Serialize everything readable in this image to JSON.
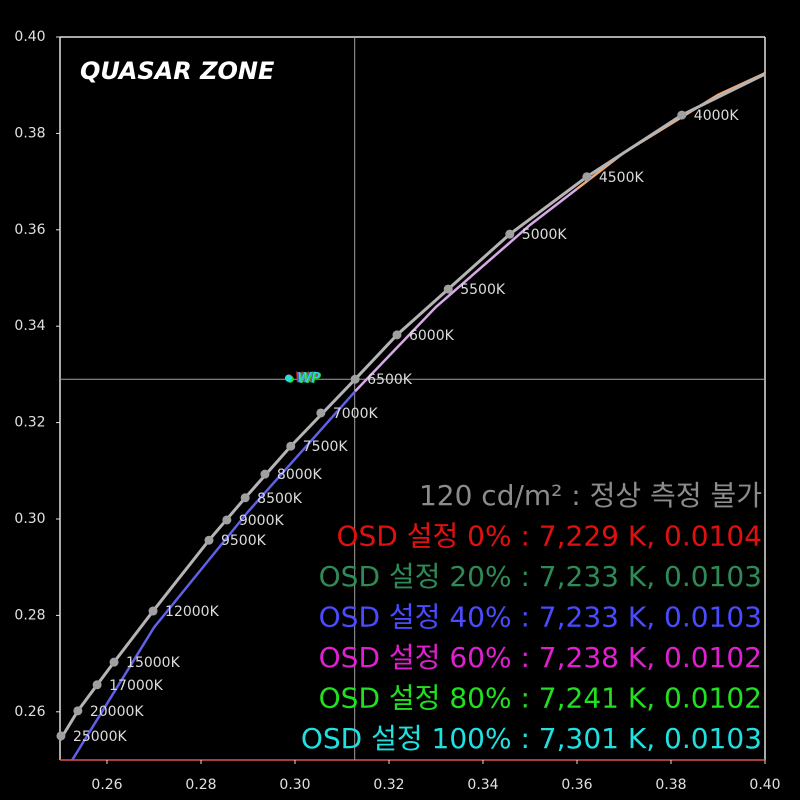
{
  "chart_data": {
    "type": "scatter",
    "logo": "QUASAR ZONE",
    "xlim": [
      0.25,
      0.4
    ],
    "ylim": [
      0.25,
      0.4
    ],
    "xticks": [
      0.26,
      0.28,
      {
        "value": 0.3,
        "label": "0.30"
      },
      0.32,
      0.34,
      0.36,
      0.38,
      {
        "value": 0.4,
        "label": "0.40"
      }
    ],
    "yticks": [
      0.26,
      0.28,
      {
        "value": 0.3,
        "label": "0.30"
      },
      0.32,
      0.34,
      0.36,
      0.38,
      {
        "value": 0.4,
        "label": "0.40"
      }
    ],
    "crosshair": {
      "x": 0.3127,
      "y": 0.329,
      "color": "#a0a0a0"
    },
    "locus": {
      "color": "#b4b4b4",
      "x": [
        0.25,
        0.2538,
        0.2579,
        0.2615,
        0.2698,
        0.2817,
        0.2894,
        0.2991,
        0.3128,
        0.3217,
        0.3326,
        0.3457,
        0.3621,
        0.3823,
        0.4
      ],
      "y": [
        0.2541,
        0.2602,
        0.2656,
        0.2703,
        0.2809,
        0.2956,
        0.3044,
        0.3151,
        0.329,
        0.3382,
        0.3477,
        0.3591,
        0.371,
        0.3838,
        0.3923
      ]
    },
    "measured": [
      {
        "color": "#6060e8",
        "x": [
          0.2526,
          0.27,
          0.29,
          0.3128
        ],
        "y": [
          0.25,
          0.2775,
          0.3015,
          0.3265
        ]
      },
      {
        "color": "#d8a8e8",
        "x": [
          0.3128,
          0.33,
          0.35,
          0.36
        ],
        "y": [
          0.3265,
          0.344,
          0.361,
          0.3685
        ]
      },
      {
        "color": "#f0a878",
        "x": [
          0.36,
          0.37,
          0.39,
          0.4
        ],
        "y": [
          0.3685,
          0.376,
          0.388,
          0.3925
        ]
      }
    ],
    "points": {
      "color": "#a0a0a0",
      "label_color": "#dcdcdc",
      "labels": [
        "4000K",
        "4500K",
        "5000K",
        "5500K",
        "6000K",
        "6500K",
        "7000K",
        "7500K",
        "8000K",
        "8500K",
        "9000K",
        "9500K",
        "12000K",
        "15000K",
        "17000K",
        "20000K",
        "25000K"
      ],
      "x": [
        0.3823,
        0.3621,
        0.3457,
        0.3326,
        0.3217,
        0.3128,
        0.3055,
        0.2991,
        0.2936,
        0.2894,
        0.2855,
        0.2817,
        0.2698,
        0.2615,
        0.2579,
        0.2538,
        0.2502
      ],
      "y": [
        0.3838,
        0.371,
        0.3591,
        0.3477,
        0.3382,
        0.329,
        0.322,
        0.3151,
        0.3093,
        0.3044,
        0.2998,
        0.2956,
        0.2809,
        0.2703,
        0.2656,
        0.2602,
        0.255
      ]
    },
    "white_points": {
      "label": "WP",
      "colors": [
        "#e02020",
        "#30a060",
        "#5050e0",
        "#e020d0",
        "#20e020",
        "#20e0e0"
      ],
      "x": [
        0.2987,
        0.2988,
        0.2988,
        0.2989,
        0.299,
        0.2986
      ],
      "y": [
        0.3293,
        0.3292,
        0.3292,
        0.3291,
        0.329,
        0.3292
      ]
    },
    "notes": [
      {
        "text": "120 cd/m² : 정상 측정 불가",
        "color": "#8c8c8c"
      },
      {
        "text": "OSD 설정 0% : 7,229 K, 0.0104",
        "color": "#e01010"
      },
      {
        "text": "OSD 설정 20% : 7,233 K, 0.0103",
        "color": "#2e8b57"
      },
      {
        "text": "OSD 설정 40% : 7,233 K, 0.0103",
        "color": "#4a4aff"
      },
      {
        "text": "OSD 설정 60% : 7,238 K, 0.0102",
        "color": "#e020d0"
      },
      {
        "text": "OSD 설정 80% : 7,241 K, 0.0102",
        "color": "#20e020"
      },
      {
        "text": "OSD 설정 100% : 7,301 K, 0.0103",
        "color": "#20e0e0"
      }
    ]
  }
}
